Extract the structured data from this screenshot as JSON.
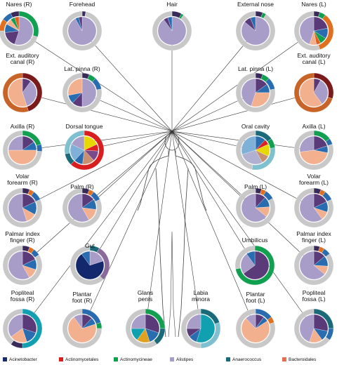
{
  "sites": [
    {
      "label": "Nares (R)",
      "inner": [
        [
          "#a89cc8",
          0.55
        ],
        [
          "#5b3a7a",
          0.18
        ],
        [
          "#2a6cb0",
          0.1
        ],
        [
          "#f3b08f",
          0.07
        ],
        [
          "#10a050",
          0.05
        ],
        [
          "#e06020",
          0.05
        ]
      ],
      "outer": [
        [
          "#10a050",
          0.3
        ],
        [
          "#c8c8c8",
          0.45
        ],
        [
          "#e07020",
          0.1
        ],
        [
          "#2a6cb0",
          0.08
        ],
        [
          "#3a2a5a",
          0.07
        ]
      ]
    },
    {
      "label": "Forehead",
      "inner": [
        [
          "#a89cc8",
          0.92
        ],
        [
          "#2a6cb0",
          0.04
        ],
        [
          "#5b3a7a",
          0.04
        ]
      ],
      "outer": [
        [
          "#3a2a5a",
          0.03
        ],
        [
          "#c8c8c8",
          0.97
        ]
      ]
    },
    {
      "label": "Hair",
      "inner": [
        [
          "#a89cc8",
          0.9
        ],
        [
          "#5b3a7a",
          0.05
        ],
        [
          "#2a6cb0",
          0.05
        ]
      ],
      "outer": [
        [
          "#3a2a5a",
          0.08
        ],
        [
          "#10a050",
          0.02
        ],
        [
          "#c8c8c8",
          0.9
        ]
      ]
    },
    {
      "label": "External nose",
      "inner": [
        [
          "#a89cc8",
          0.86
        ],
        [
          "#5b3a7a",
          0.08
        ],
        [
          "#2a6cb0",
          0.06
        ]
      ],
      "outer": [
        [
          "#3a2a5a",
          0.06
        ],
        [
          "#10a050",
          0.03
        ],
        [
          "#c8c8c8",
          0.91
        ]
      ]
    },
    {
      "label": "Nares (L)",
      "inner": [
        [
          "#5b3a7a",
          0.22
        ],
        [
          "#2a6cb0",
          0.12
        ],
        [
          "#10a050",
          0.08
        ],
        [
          "#e06020",
          0.05
        ],
        [
          "#f3b08f",
          0.08
        ],
        [
          "#a89cc8",
          0.45
        ]
      ],
      "outer": [
        [
          "#3a2a5a",
          0.05
        ],
        [
          "#10a050",
          0.05
        ],
        [
          "#e07020",
          0.35
        ],
        [
          "#c8c8c8",
          0.55
        ]
      ]
    },
    {
      "label": "Ext. auditory\ncanal (R)",
      "inner": [
        [
          "#5b3a7a",
          0.1
        ],
        [
          "#a89cc8",
          0.35
        ],
        [
          "#f3b08f",
          0.55
        ]
      ],
      "outer": [
        [
          "#7a1a1a",
          0.45
        ],
        [
          "#c86428",
          0.55
        ]
      ]
    },
    {
      "label": "Lat. pinna (R)",
      "inner": [
        [
          "#a89cc8",
          0.5
        ],
        [
          "#5b3a7a",
          0.12
        ],
        [
          "#2a6cb0",
          0.1
        ],
        [
          "#f3b08f",
          0.28
        ]
      ],
      "outer": [
        [
          "#3a2a5a",
          0.06
        ],
        [
          "#10a050",
          0.06
        ],
        [
          "#2a6cb0",
          0.1
        ],
        [
          "#c8c8c8",
          0.78
        ]
      ]
    },
    {
      "label": "Lat. pinna (L)",
      "inner": [
        [
          "#5b3a7a",
          0.15
        ],
        [
          "#2a6cb0",
          0.1
        ],
        [
          "#f3b08f",
          0.3
        ],
        [
          "#a89cc8",
          0.45
        ]
      ],
      "outer": [
        [
          "#3a2a5a",
          0.06
        ],
        [
          "#10a050",
          0.06
        ],
        [
          "#2a6cb0",
          0.1
        ],
        [
          "#c8c8c8",
          0.78
        ]
      ]
    },
    {
      "label": "Ext. auditory\ncanal (L)",
      "inner": [
        [
          "#5b3a7a",
          0.08
        ],
        [
          "#a89cc8",
          0.32
        ],
        [
          "#f3b08f",
          0.6
        ]
      ],
      "outer": [
        [
          "#7a1a1a",
          0.3
        ],
        [
          "#c86428",
          0.7
        ]
      ]
    },
    {
      "label": "Axilla (R)",
      "inner": [
        [
          "#5b3a7a",
          0.15
        ],
        [
          "#2a6cb0",
          0.1
        ],
        [
          "#f3b08f",
          0.5
        ],
        [
          "#a89cc8",
          0.25
        ]
      ],
      "outer": [
        [
          "#10a050",
          0.2
        ],
        [
          "#2a6cb0",
          0.06
        ],
        [
          "#c8c8c8",
          0.74
        ]
      ]
    },
    {
      "label": "Dorsal tongue",
      "inner": [
        [
          "#e8d800",
          0.18
        ],
        [
          "#e02020",
          0.08
        ],
        [
          "#7a4a8a",
          0.12
        ],
        [
          "#c89070",
          0.14
        ],
        [
          "#2a6cb0",
          0.1
        ],
        [
          "#7fb0d8",
          0.2
        ],
        [
          "#a89cc8",
          0.18
        ]
      ],
      "outer": [
        [
          "#d81e1e",
          0.62
        ],
        [
          "#1a6a7a",
          0.1
        ],
        [
          "#7fc0d0",
          0.28
        ]
      ]
    },
    {
      "label": "Oral cavity",
      "inner": [
        [
          "#2a6cb0",
          0.12
        ],
        [
          "#e02020",
          0.06
        ],
        [
          "#e8d800",
          0.14
        ],
        [
          "#c89070",
          0.1
        ],
        [
          "#b0b0d0",
          0.28
        ],
        [
          "#7fb0d8",
          0.3
        ]
      ],
      "outer": [
        [
          "#1a6a7a",
          0.15
        ],
        [
          "#10a050",
          0.08
        ],
        [
          "#7fc0d0",
          0.3
        ],
        [
          "#c8c8c8",
          0.47
        ]
      ]
    },
    {
      "label": "Axilla (L)",
      "inner": [
        [
          "#5b3a7a",
          0.2
        ],
        [
          "#2a6cb0",
          0.08
        ],
        [
          "#f3b08f",
          0.45
        ],
        [
          "#a89cc8",
          0.27
        ]
      ],
      "outer": [
        [
          "#10a050",
          0.15
        ],
        [
          "#2a6cb0",
          0.05
        ],
        [
          "#c8c8c8",
          0.8
        ]
      ]
    },
    {
      "label": "Volar\nforearm (R)",
      "inner": [
        [
          "#5b3a7a",
          0.18
        ],
        [
          "#2a6cb0",
          0.15
        ],
        [
          "#f3b08f",
          0.12
        ],
        [
          "#a89cc8",
          0.55
        ]
      ],
      "outer": [
        [
          "#3a2a5a",
          0.06
        ],
        [
          "#e07020",
          0.04
        ],
        [
          "#2a6cb0",
          0.08
        ],
        [
          "#c8c8c8",
          0.82
        ]
      ]
    },
    {
      "label": "Palm (R)",
      "inner": [
        [
          "#5b3a7a",
          0.15
        ],
        [
          "#2a6cb0",
          0.12
        ],
        [
          "#f3b08f",
          0.15
        ],
        [
          "#a89cc8",
          0.58
        ]
      ],
      "outer": [
        [
          "#3a2a5a",
          0.06
        ],
        [
          "#e07020",
          0.04
        ],
        [
          "#2a6cb0",
          0.08
        ],
        [
          "#c8c8c8",
          0.82
        ]
      ]
    },
    {
      "label": "Palm (L)",
      "inner": [
        [
          "#5b3a7a",
          0.12
        ],
        [
          "#2a6cb0",
          0.12
        ],
        [
          "#f3b08f",
          0.12
        ],
        [
          "#a89cc8",
          0.64
        ]
      ],
      "outer": [
        [
          "#3a2a5a",
          0.05
        ],
        [
          "#e07020",
          0.04
        ],
        [
          "#2a6cb0",
          0.08
        ],
        [
          "#c8c8c8",
          0.83
        ]
      ]
    },
    {
      "label": "Volar\nforearm (L)",
      "inner": [
        [
          "#5b3a7a",
          0.18
        ],
        [
          "#2a6cb0",
          0.12
        ],
        [
          "#f3b08f",
          0.1
        ],
        [
          "#a89cc8",
          0.6
        ]
      ],
      "outer": [
        [
          "#3a2a5a",
          0.06
        ],
        [
          "#e07020",
          0.04
        ],
        [
          "#2a6cb0",
          0.08
        ],
        [
          "#c8c8c8",
          0.82
        ]
      ]
    },
    {
      "label": "Palmar index\nfinger (R)",
      "inner": [
        [
          "#5b3a7a",
          0.18
        ],
        [
          "#2a6cb0",
          0.12
        ],
        [
          "#f3b08f",
          0.12
        ],
        [
          "#a89cc8",
          0.58
        ]
      ],
      "outer": [
        [
          "#3a2a5a",
          0.06
        ],
        [
          "#e07020",
          0.04
        ],
        [
          "#2a6cb0",
          0.06
        ],
        [
          "#c8c8c8",
          0.84
        ]
      ]
    },
    {
      "label": "Gut",
      "inner": [
        [
          "#a89cc8",
          0.2
        ],
        [
          "#14286e",
          0.7
        ],
        [
          "#2a6cb0",
          0.1
        ]
      ],
      "outer": [
        [
          "#1a6a7a",
          0.08
        ],
        [
          "#8a6a9a",
          0.3
        ],
        [
          "#c8c8c8",
          0.62
        ]
      ]
    },
    {
      "label": "Umbilicus",
      "inner": [
        [
          "#5b3a7a",
          0.65
        ],
        [
          "#a89cc8",
          0.25
        ],
        [
          "#2a6cb0",
          0.1
        ]
      ],
      "outer": [
        [
          "#10a050",
          0.72
        ],
        [
          "#c8c8c8",
          0.28
        ]
      ]
    },
    {
      "label": "Palmar index\nfinger (L)",
      "inner": [
        [
          "#5b3a7a",
          0.14
        ],
        [
          "#2a6cb0",
          0.12
        ],
        [
          "#f3b08f",
          0.1
        ],
        [
          "#a89cc8",
          0.64
        ]
      ],
      "outer": [
        [
          "#3a2a5a",
          0.05
        ],
        [
          "#e07020",
          0.04
        ],
        [
          "#2a6cb0",
          0.06
        ],
        [
          "#c8c8c8",
          0.85
        ]
      ]
    },
    {
      "label": "Popliteal\nfossa (R)",
      "inner": [
        [
          "#5b3a7a",
          0.3
        ],
        [
          "#2a6cb0",
          0.15
        ],
        [
          "#f3b08f",
          0.2
        ],
        [
          "#a89cc8",
          0.35
        ]
      ],
      "outer": [
        [
          "#10a0b0",
          0.5
        ],
        [
          "#3a2a5a",
          0.1
        ],
        [
          "#c8c8c8",
          0.4
        ]
      ]
    },
    {
      "label": "Plantar\nfoot (R)",
      "inner": [
        [
          "#5b3a7a",
          0.12
        ],
        [
          "#2a6cb0",
          0.08
        ],
        [
          "#f3b08f",
          0.7
        ],
        [
          "#a89cc8",
          0.1
        ]
      ],
      "outer": [
        [
          "#2a6cb0",
          0.2
        ],
        [
          "#10a050",
          0.05
        ],
        [
          "#c8c8c8",
          0.75
        ]
      ]
    },
    {
      "label": "Glans\npenis",
      "inner": [
        [
          "#5b3a7a",
          0.3
        ],
        [
          "#2a6cb0",
          0.15
        ],
        [
          "#e0a020",
          0.15
        ],
        [
          "#10a0b0",
          0.15
        ],
        [
          "#a89cc8",
          0.25
        ]
      ],
      "outer": [
        [
          "#10a050",
          0.25
        ],
        [
          "#1a6a7a",
          0.15
        ],
        [
          "#c8c8c8",
          0.6
        ]
      ]
    },
    {
      "label": "Labia\nminora",
      "inner": [
        [
          "#10a0b0",
          0.55
        ],
        [
          "#2a6cb0",
          0.1
        ],
        [
          "#5b3a7a",
          0.1
        ],
        [
          "#a89cc8",
          0.25
        ]
      ],
      "outer": [
        [
          "#1a6a7a",
          0.2
        ],
        [
          "#7fc0d0",
          0.3
        ],
        [
          "#c8c8c8",
          0.5
        ]
      ]
    },
    {
      "label": "Plantar\nfoot (L)",
      "inner": [
        [
          "#5b3a7a",
          0.1
        ],
        [
          "#2a6cb0",
          0.06
        ],
        [
          "#f3b08f",
          0.72
        ],
        [
          "#a89cc8",
          0.12
        ]
      ],
      "outer": [
        [
          "#2a6cb0",
          0.15
        ],
        [
          "#e07020",
          0.05
        ],
        [
          "#c8c8c8",
          0.8
        ]
      ]
    },
    {
      "label": "Popliteal\nfossa (L)",
      "inner": [
        [
          "#5b3a7a",
          0.28
        ],
        [
          "#2a6cb0",
          0.12
        ],
        [
          "#f3b08f",
          0.15
        ],
        [
          "#a89cc8",
          0.45
        ]
      ],
      "outer": [
        [
          "#1a6a7a",
          0.25
        ],
        [
          "#2a6cb0",
          0.1
        ],
        [
          "#c8c8c8",
          0.65
        ]
      ]
    }
  ],
  "legend": [
    {
      "label": "Acinetobacter",
      "color": "#1a2a6e"
    },
    {
      "label": "Actinomycetales",
      "color": "#d81e1e"
    },
    {
      "label": "Actinomycineae",
      "color": "#10a050"
    },
    {
      "label": "Alistipes",
      "color": "#a89cc8"
    },
    {
      "label": "Anaerococcus",
      "color": "#1a6a7a"
    },
    {
      "label": "Bacteroidales",
      "color": "#e07050"
    }
  ]
}
